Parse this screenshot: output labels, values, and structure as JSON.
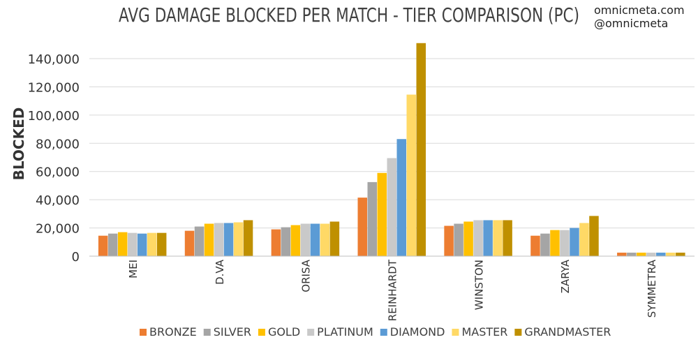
{
  "chart_data": {
    "type": "bar",
    "title": "AVG DAMAGE BLOCKED PER MATCH - TIER COMPARISON (PC)",
    "credits": [
      "omnicmeta.com",
      "@omnicmeta"
    ],
    "xlabel": "",
    "ylabel": "BLOCKED",
    "ylim": [
      0,
      150000
    ],
    "yticks": [
      0,
      20000,
      40000,
      60000,
      80000,
      100000,
      120000,
      140000
    ],
    "ytick_labels": [
      "0",
      "20,000",
      "40,000",
      "60,000",
      "80,000",
      "100,000",
      "120,000",
      "140,000"
    ],
    "grid": true,
    "legend_position": "bottom",
    "categories": [
      "MEI",
      "D.VA",
      "ORISA",
      "REINHARDT",
      "WINSTON",
      "ZARYA",
      "SYMMETRA"
    ],
    "series": [
      {
        "name": "BRONZE",
        "color": "#ED7D31",
        "values": [
          14500,
          18000,
          19000,
          41500,
          21500,
          14500,
          2500
        ]
      },
      {
        "name": "SILVER",
        "color": "#A5A5A5",
        "values": [
          16000,
          21000,
          20500,
          52500,
          23000,
          16000,
          2500
        ]
      },
      {
        "name": "GOLD",
        "color": "#FFC000",
        "values": [
          17000,
          23000,
          22000,
          59000,
          24500,
          18500,
          2500
        ]
      },
      {
        "name": "PLATINUM",
        "color": "#C9C9C9",
        "values": [
          16500,
          23500,
          23000,
          69500,
          25500,
          18500,
          2500
        ]
      },
      {
        "name": "DIAMOND",
        "color": "#5B9BD5",
        "values": [
          16000,
          23500,
          23000,
          83000,
          25500,
          20000,
          2500
        ]
      },
      {
        "name": "MASTER",
        "color": "#FFD966",
        "values": [
          16500,
          24000,
          23000,
          114500,
          25500,
          23500,
          2500
        ]
      },
      {
        "name": "GRANDMASTER",
        "color": "#BF9000",
        "values": [
          16500,
          25500,
          24500,
          151000,
          25500,
          28500,
          2500
        ]
      }
    ]
  }
}
